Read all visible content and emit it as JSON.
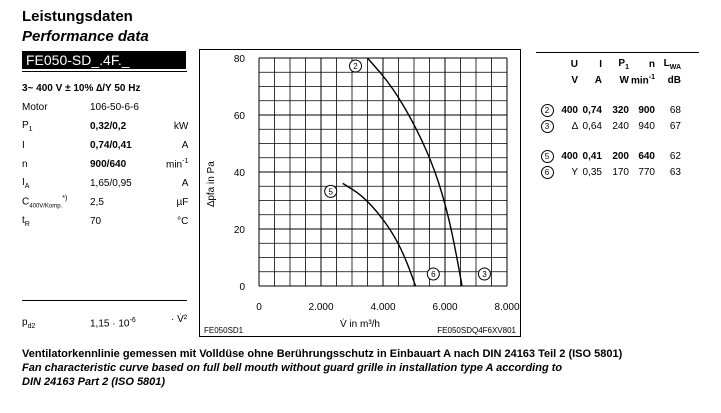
{
  "header": {
    "title_de": "Leistungsdaten",
    "title_en": "Performance data",
    "model": "FE050-SD_.4F._"
  },
  "supply": "3~ 400 V ± 10% ∆/Y  50 Hz",
  "specs": [
    {
      "label": "Motor",
      "value": "106-50-6-6",
      "unit": "",
      "bold": false
    },
    {
      "label": "P",
      "sub": "1",
      "value": "0,32/0,2",
      "unit": "kW",
      "bold": true
    },
    {
      "label": "I",
      "value": "0,74/0,41",
      "unit": "A",
      "bold": true
    },
    {
      "label": "n",
      "value": "900/640",
      "unit": "min",
      "unit_sup": "-1",
      "bold": true
    },
    {
      "label": "I",
      "sub": "A",
      "value": "1,65/0,95",
      "unit": "A",
      "bold": false
    },
    {
      "label": "C",
      "sub": "400V/Komp.",
      "sup": "*)",
      "value": "2,5",
      "unit": "µF",
      "bold": false
    },
    {
      "label": "t",
      "sub": "R",
      "value": "70",
      "unit": "°C",
      "bold": false
    }
  ],
  "pd": {
    "label": "p",
    "sub": "d2",
    "value": "1,15 · 10",
    "value_sup": "-6",
    "unit": "· V̇²"
  },
  "operating_table": {
    "headers": [
      "U",
      "I",
      "P1",
      "n",
      "LWA"
    ],
    "units": [
      "V",
      "A",
      "W",
      "min-1",
      "dB"
    ],
    "rows": [
      {
        "marker": "2",
        "bold": true,
        "values": [
          "400",
          "0,74",
          "320",
          "900",
          "68"
        ]
      },
      {
        "marker": "3",
        "bold": false,
        "values": [
          "∆",
          "0,64",
          "240",
          "940",
          "67"
        ]
      },
      {
        "marker": "5",
        "bold": true,
        "values": [
          "400",
          "0,41",
          "200",
          "640",
          "62"
        ]
      },
      {
        "marker": "6",
        "bold": false,
        "values": [
          "Y",
          "0,35",
          "170",
          "770",
          "63"
        ]
      }
    ]
  },
  "chart_data": {
    "type": "line",
    "xlabel": "V̇ in m³/h",
    "ylabel": "∆pfa in Pa",
    "xlim": [
      0,
      8000
    ],
    "ylim": [
      0,
      80
    ],
    "x_ticks": [
      "0",
      "2.000",
      "4.000",
      "6.000",
      "8.000"
    ],
    "y_ticks": [
      "0",
      "20",
      "40",
      "60",
      "80"
    ],
    "grid": true,
    "series": [
      {
        "name": "2",
        "points": [
          [
            3500,
            80
          ],
          [
            4300,
            70
          ],
          [
            5100,
            55
          ],
          [
            5700,
            40
          ],
          [
            6100,
            25
          ],
          [
            6350,
            12
          ],
          [
            6550,
            0
          ]
        ]
      },
      {
        "name": "5",
        "points": [
          [
            2700,
            36
          ],
          [
            3300,
            32
          ],
          [
            3900,
            25
          ],
          [
            4400,
            17
          ],
          [
            4750,
            9
          ],
          [
            5050,
            0
          ]
        ]
      },
      {
        "name": "6",
        "points": [
          [
            5300,
            0
          ]
        ]
      },
      {
        "name": "3",
        "points": [
          [
            6950,
            0
          ]
        ]
      }
    ],
    "corner_left": "FE050SD1",
    "corner_right": "FE050SDQ4F6XV801"
  },
  "footer": {
    "line_de": "Ventilatorkennlinie gemessen mit Volldüse ohne Berührungsschutz in Einbauart A nach DIN 24163 Teil 2 (ISO 5801)",
    "line_en1": "Fan characteristic curve based on full bell mouth without guard grille in installation type A according to",
    "line_en2": "DIN 24163 Part 2 (ISO 5801)"
  }
}
